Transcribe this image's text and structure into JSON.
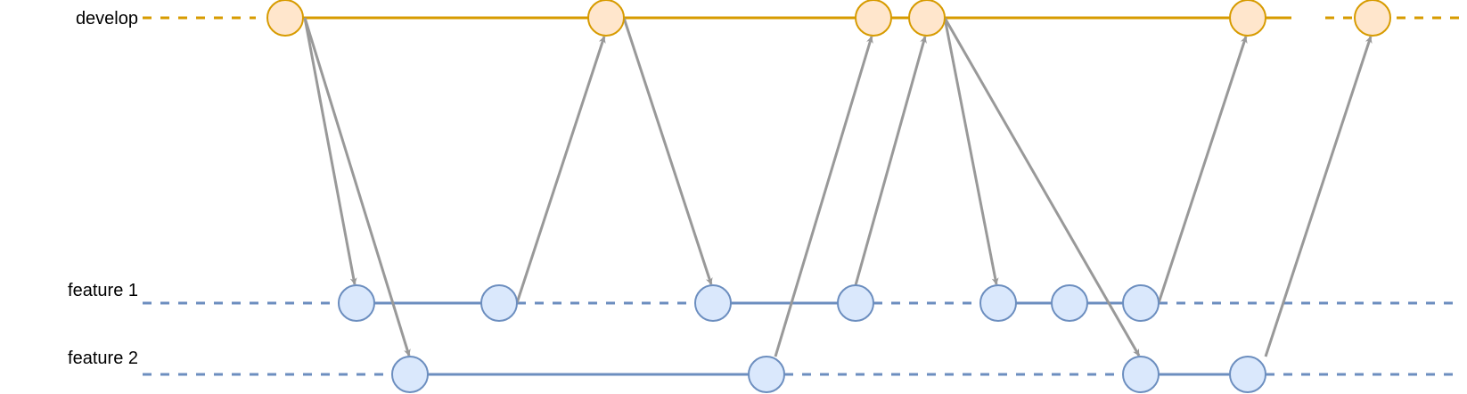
{
  "branches": {
    "develop": {
      "label": "develop",
      "line_color": "#d79b00",
      "node_fill": "#ffe6cc",
      "node_stroke": "#d79b00"
    },
    "feature1": {
      "label": "feature 1",
      "line_color": "#6c8ebf",
      "node_fill": "#dae8fc",
      "node_stroke": "#6c8ebf"
    },
    "feature2": {
      "label": "feature 2",
      "line_color": "#6c8ebf",
      "node_fill": "#dae8fc",
      "node_stroke": "#6c8ebf"
    }
  },
  "arrow_color": "#999999",
  "commit_counts": {
    "develop": 6,
    "feature1": 7,
    "feature2": 4
  }
}
